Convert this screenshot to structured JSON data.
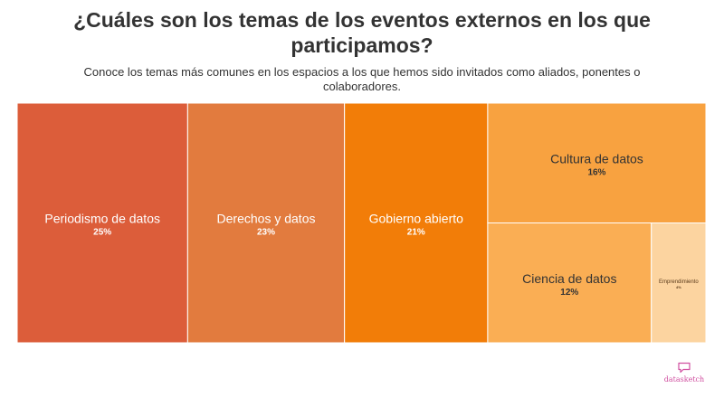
{
  "header": {
    "title": "¿Cuáles son los temas de los eventos externos en los que participamos?",
    "subtitle": "Conoce los temas más comunes en los espacios a los que hemos sido invitados como aliados, ponentes o colaboradores."
  },
  "chart_data": {
    "type": "treemap",
    "title": "¿Cuáles son los temas de los eventos externos en los que participamos?",
    "subtitle": "Conoce los temas más comunes en los espacios a los que hemos sido invitados como aliados, ponentes o colaboradores.",
    "items": [
      {
        "name": "Periodismo de datos",
        "value": 25,
        "label": "25%",
        "color": "#dc5d3a"
      },
      {
        "name": "Derechos y datos",
        "value": 23,
        "label": "23%",
        "color": "#e27b3e"
      },
      {
        "name": "Gobierno abierto",
        "value": 21,
        "label": "21%",
        "color": "#f27d08"
      },
      {
        "name": "Cultura de datos",
        "value": 16,
        "label": "16%",
        "color": "#f8a240"
      },
      {
        "name": "Ciencia de datos",
        "value": 12,
        "label": "12%",
        "color": "#faae54"
      },
      {
        "name": "Emprendimiento",
        "value": 4,
        "label": "4%",
        "color": "#fcd4a0"
      }
    ]
  },
  "branding": {
    "logo_text": "datasketch",
    "logo_icon": "chat-bubble-icon",
    "color": "#d04fa0"
  }
}
